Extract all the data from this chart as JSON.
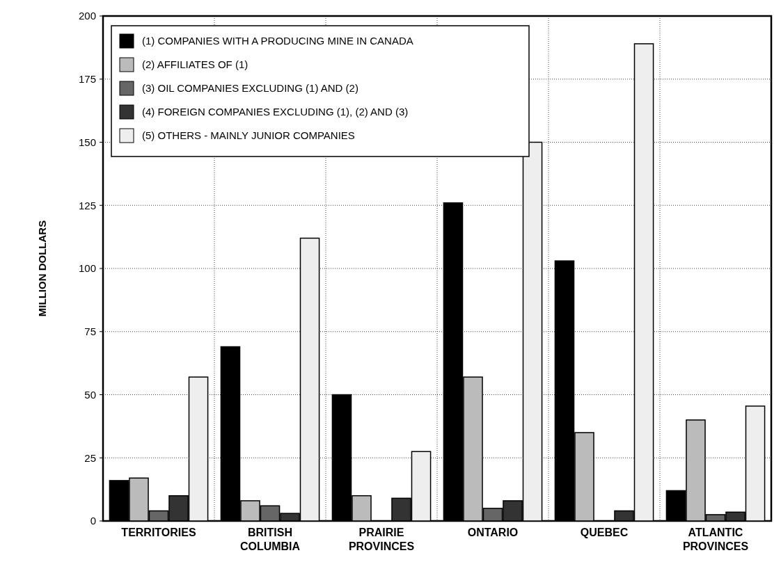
{
  "chart_data": {
    "type": "bar",
    "ylabel": "MILLION DOLLARS",
    "categories": [
      "TERRITORIES",
      "BRITISH COLUMBIA",
      "PRAIRIE PROVINCES",
      "ONTARIO",
      "QUEBEC",
      "ATLANTIC PROVINCES"
    ],
    "series": [
      {
        "name": "(1) COMPANIES WITH A PRODUCING MINE IN CANADA",
        "color": "#000000",
        "values": [
          16,
          69,
          50,
          126,
          103,
          12
        ]
      },
      {
        "name": "(2) AFFILIATES OF (1)",
        "color": "#bbbbbb",
        "values": [
          17,
          8,
          10,
          57,
          35,
          40
        ]
      },
      {
        "name": "(3) OIL COMPANIES EXCLUDING (1) AND (2)",
        "color": "#666666",
        "values": [
          4,
          6,
          0,
          5,
          0,
          2.5
        ]
      },
      {
        "name": "(4) FOREIGN COMPANIES EXCLUDING (1), (2) AND (3)",
        "color": "#333333",
        "values": [
          10,
          3,
          9,
          8,
          4,
          3.5
        ]
      },
      {
        "name": "(5) OTHERS - MAINLY JUNIOR COMPANIES",
        "color": "#eeeeee",
        "values": [
          57,
          112,
          27.5,
          150,
          189,
          45.5
        ]
      }
    ],
    "ylim": [
      0,
      200
    ],
    "yticks": [
      0,
      25,
      50,
      75,
      100,
      125,
      150,
      175,
      200
    ],
    "grid": true,
    "legend": "top left"
  }
}
